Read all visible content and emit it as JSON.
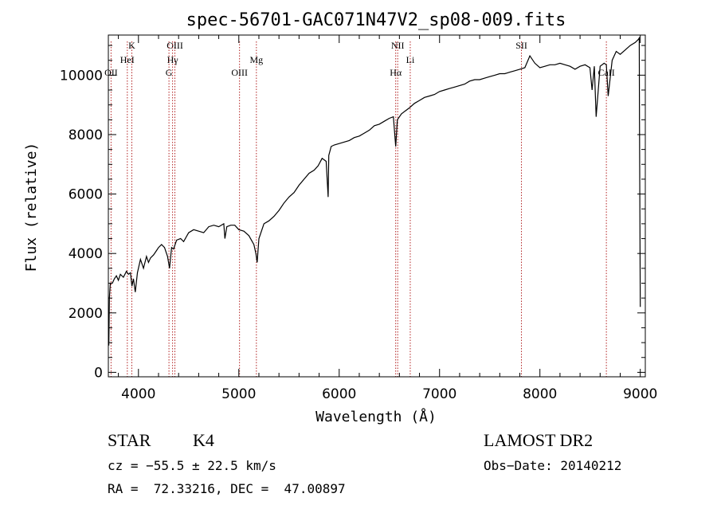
{
  "chart_data": {
    "type": "line",
    "title": "spec-56701-GAC071N47V2_sp08-009.fits",
    "xlabel": "Wavelength (Å)",
    "ylabel": "Flux (relative)",
    "xlim": [
      3700,
      9050
    ],
    "ylim": [
      -150,
      11350
    ],
    "xticks": [
      4000,
      5000,
      6000,
      7000,
      8000,
      9000
    ],
    "yticks": [
      0,
      2000,
      4000,
      6000,
      8000,
      10000
    ],
    "grid": false,
    "series": [
      {
        "x": [
          3705,
          3710,
          3720,
          3740,
          3760,
          3780,
          3800,
          3820,
          3850,
          3880,
          3900,
          3920,
          3935,
          3950,
          3968,
          3990,
          4020,
          4050,
          4080,
          4100,
          4120,
          4150,
          4180,
          4200,
          4230,
          4260,
          4290,
          4310,
          4330,
          4350,
          4380,
          4420,
          4450,
          4500,
          4550,
          4600,
          4650,
          4700,
          4750,
          4800,
          4850,
          4861,
          4880,
          4920,
          4960,
          5000,
          5050,
          5100,
          5150,
          5170,
          5183,
          5200,
          5250,
          5300,
          5350,
          5400,
          5450,
          5500,
          5550,
          5600,
          5650,
          5700,
          5750,
          5790,
          5830,
          5870,
          5890,
          5896,
          5920,
          5950,
          6000,
          6050,
          6100,
          6150,
          6200,
          6250,
          6300,
          6350,
          6400,
          6450,
          6500,
          6540,
          6563,
          6580,
          6620,
          6660,
          6700,
          6750,
          6800,
          6850,
          6900,
          6950,
          7000,
          7050,
          7100,
          7150,
          7200,
          7250,
          7300,
          7350,
          7400,
          7450,
          7500,
          7550,
          7600,
          7650,
          7700,
          7750,
          7800,
          7850,
          7900,
          7950,
          8000,
          8050,
          8100,
          8150,
          8200,
          8250,
          8300,
          8350,
          8400,
          8450,
          8498,
          8520,
          8542,
          8560,
          8600,
          8640,
          8662,
          8680,
          8720,
          8760,
          8800,
          8850,
          8900,
          8950,
          8980,
          8990,
          8992,
          9000
        ],
        "y": [
          900,
          2500,
          3000,
          3000,
          3150,
          3250,
          3100,
          3300,
          3200,
          3400,
          3300,
          3350,
          2900,
          3150,
          2700,
          3350,
          3800,
          3500,
          3900,
          3700,
          3850,
          3950,
          4100,
          4200,
          4300,
          4200,
          3900,
          3500,
          4200,
          4150,
          4450,
          4500,
          4400,
          4700,
          4800,
          4750,
          4700,
          4900,
          4950,
          4900,
          5000,
          4500,
          4900,
          4950,
          4950,
          4800,
          4750,
          4600,
          4300,
          4000,
          3700,
          4500,
          5000,
          5100,
          5250,
          5450,
          5700,
          5900,
          6050,
          6300,
          6500,
          6700,
          6800,
          6950,
          7200,
          7100,
          5900,
          7300,
          7600,
          7650,
          7700,
          7750,
          7800,
          7900,
          7950,
          8050,
          8150,
          8300,
          8350,
          8450,
          8550,
          8600,
          7600,
          8500,
          8700,
          8800,
          8900,
          9050,
          9150,
          9250,
          9300,
          9350,
          9450,
          9500,
          9550,
          9600,
          9650,
          9700,
          9800,
          9850,
          9850,
          9900,
          9950,
          10000,
          10050,
          10050,
          10100,
          10150,
          10200,
          10250,
          10650,
          10400,
          10250,
          10300,
          10350,
          10350,
          10400,
          10350,
          10300,
          10200,
          10300,
          10350,
          10250,
          9500,
          10300,
          8600,
          10300,
          10400,
          10350,
          9300,
          10500,
          10800,
          10700,
          10850,
          11000,
          11100,
          11200,
          11250,
          8500,
          2200
        ]
      }
    ],
    "line_markers": [
      {
        "label": "OII",
        "x": 3727,
        "row": 3
      },
      {
        "label": "K",
        "x": 3934,
        "row": 1
      },
      {
        "label": "HeI",
        "x": 3889,
        "row": 2
      },
      {
        "label": "OIII",
        "x": 4363,
        "row": 1
      },
      {
        "label": "Hγ",
        "x": 4340,
        "row": 2
      },
      {
        "label": "G",
        "x": 4304,
        "row": 3
      },
      {
        "label": "OIII",
        "x": 5007,
        "row": 3
      },
      {
        "label": "Mg",
        "x": 5175,
        "row": 2
      },
      {
        "label": "NII",
        "x": 6583,
        "row": 1
      },
      {
        "label": "Li",
        "x": 6708,
        "row": 2
      },
      {
        "label": "Hα",
        "x": 6563,
        "row": 3
      },
      {
        "label": "SII",
        "x": 7816,
        "row": 1
      },
      {
        "label": "CaII",
        "x": 8662,
        "row": 3
      }
    ],
    "colors": {
      "line": "#000000",
      "marker": "#b22222"
    }
  },
  "info": {
    "class": "STAR",
    "subclass": "K4",
    "survey": "LAMOST DR2",
    "cz": "cz = −55.5 ± 22.5 km/s",
    "obsdate": "Obs−Date: 20140212",
    "radec": "RA =  72.33216, DEC =  47.00897"
  }
}
